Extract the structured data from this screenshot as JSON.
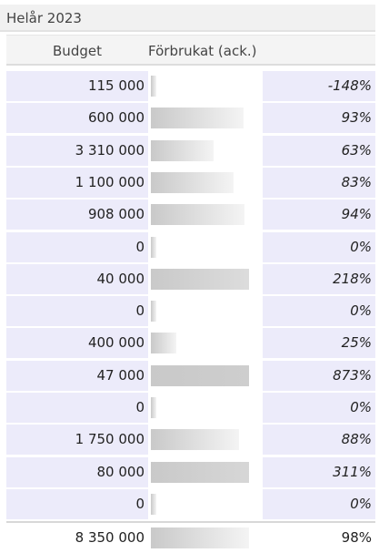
{
  "header": {
    "title": "Helår 2023"
  },
  "columns": [
    "Budget",
    "Förbrukat (ack.)"
  ],
  "rows": [
    {
      "budget": "115 000",
      "used": -148,
      "used_label": "-148%"
    },
    {
      "budget": "600 000",
      "used": 93,
      "used_label": "93%"
    },
    {
      "budget": "3 310 000",
      "used": 63,
      "used_label": "63%"
    },
    {
      "budget": "1 100 000",
      "used": 83,
      "used_label": "83%"
    },
    {
      "budget": "908 000",
      "used": 94,
      "used_label": "94%"
    },
    {
      "budget": "0",
      "used": 0,
      "used_label": "0%"
    },
    {
      "budget": "40 000",
      "used": 218,
      "used_label": "218%"
    },
    {
      "budget": "0",
      "used": 0,
      "used_label": "0%"
    },
    {
      "budget": "400 000",
      "used": 25,
      "used_label": "25%"
    },
    {
      "budget": "47 000",
      "used": 873,
      "used_label": "873%"
    },
    {
      "budget": "0",
      "used": 0,
      "used_label": "0%"
    },
    {
      "budget": "1 750 000",
      "used": 88,
      "used_label": "88%"
    },
    {
      "budget": "80 000",
      "used": 311,
      "used_label": "311%"
    },
    {
      "budget": "0",
      "used": 0,
      "used_label": "0%"
    }
  ],
  "total": {
    "budget": "8 350 000",
    "used": 98,
    "used_label": "98%"
  }
}
